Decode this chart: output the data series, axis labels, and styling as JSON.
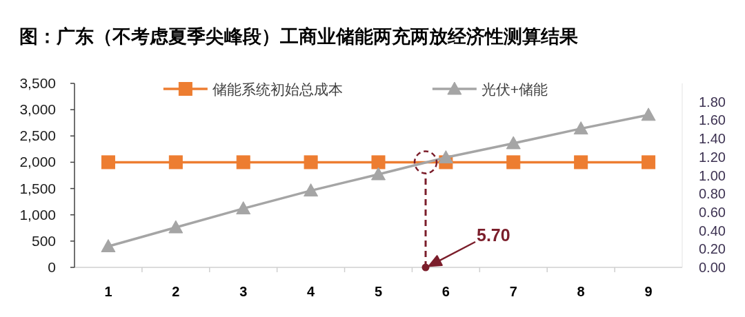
{
  "chart_data": {
    "type": "line",
    "title": "图：广东（不考虑夏季尖峰段）工商业储能两充两放经济性测算结果",
    "x": [
      1,
      2,
      3,
      4,
      5,
      6,
      7,
      8,
      9
    ],
    "xlim": [
      0.5,
      9.5
    ],
    "xticks": [
      1,
      {
        "value": 1.5,
        "label": null
      },
      2,
      {
        "value": 2.5,
        "label": null
      },
      3,
      {
        "value": 3.5,
        "label": null
      },
      4,
      {
        "value": 4.5,
        "label": null
      },
      5,
      {
        "value": 5.5,
        "label": null
      },
      6,
      {
        "value": 6.5,
        "label": null
      },
      7,
      {
        "value": 7.5,
        "label": null
      },
      8,
      {
        "value": 8.5,
        "label": null
      },
      9
    ],
    "ylim": [
      0,
      3500
    ],
    "yticks": [
      0,
      500,
      {
        "value": 1000,
        "label": "1,000"
      },
      {
        "value": 1500,
        "label": "1,500"
      },
      {
        "value": 2000,
        "label": "2,000"
      },
      {
        "value": 2500,
        "label": "2,500"
      },
      {
        "value": 3000,
        "label": "3,000"
      },
      {
        "value": 3500,
        "label": "3,500"
      }
    ],
    "y2lim": [
      0,
      2.0
    ],
    "y2ticks": [
      {
        "value": 0,
        "label": "0.00"
      },
      {
        "value": 0.2,
        "label": "0.20"
      },
      {
        "value": 0.4,
        "label": "0.40"
      },
      {
        "value": 0.6,
        "label": "0.60"
      },
      {
        "value": 0.8,
        "label": "0.80"
      },
      {
        "value": 1.0,
        "label": "1.00"
      },
      {
        "value": 1.2,
        "label": "1.20"
      },
      {
        "value": 1.4,
        "label": "1.40"
      },
      {
        "value": 1.6,
        "label": "1.60"
      },
      {
        "value": 1.8,
        "label": "1.80"
      }
    ],
    "series": [
      {
        "name": "储能系统初始总成本",
        "color": "#ed7d31",
        "marker": "square",
        "values": [
          2000,
          2000,
          2000,
          2000,
          2000,
          2000,
          2000,
          2000,
          2000
        ]
      },
      {
        "name": "光伏+储能",
        "color": "#a5a5a5",
        "marker": "triangle",
        "values": [
          400,
          760,
          1120,
          1460,
          1770,
          2090,
          2360,
          2640,
          2900
        ]
      }
    ],
    "legend": "top",
    "line_style": "solid",
    "ref_lines": [
      {
        "axis": "x",
        "value": 5.7,
        "label": "5.70",
        "color": "#7b1e2b",
        "line_style": "dashed"
      }
    ]
  }
}
